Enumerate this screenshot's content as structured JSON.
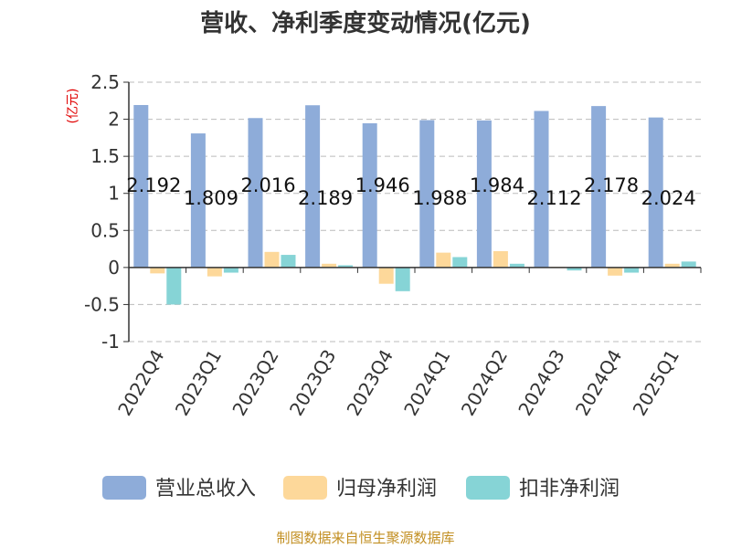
{
  "chart_data": {
    "type": "bar",
    "title": "营收、净利季度变动情况(亿元)",
    "unit_label": "(亿元)",
    "categories": [
      "2022Q4",
      "2023Q1",
      "2023Q2",
      "2023Q3",
      "2023Q4",
      "2024Q1",
      "2024Q2",
      "2024Q3",
      "2024Q4",
      "2025Q1"
    ],
    "series": [
      {
        "name": "营业总收入",
        "color": "#8eacd9",
        "values": [
          2.192,
          1.809,
          2.016,
          2.189,
          1.946,
          1.988,
          1.984,
          2.112,
          2.178,
          2.024
        ],
        "labels": [
          "2.192",
          "1.809",
          "2.016",
          "2.189",
          "1.946",
          "1.988",
          "1.984",
          "2.112",
          "2.178",
          "2.024"
        ]
      },
      {
        "name": "归母净利润",
        "color": "#fdd89a",
        "values": [
          -0.08,
          -0.12,
          0.21,
          0.05,
          -0.22,
          0.2,
          0.22,
          0.01,
          -0.11,
          0.05
        ]
      },
      {
        "name": "扣非净利润",
        "color": "#86d4d6",
        "values": [
          -0.5,
          -0.07,
          0.17,
          0.03,
          -0.32,
          0.14,
          0.05,
          -0.04,
          -0.07,
          0.08
        ]
      }
    ],
    "yticks": [
      "2.5",
      "2",
      "1.5",
      "1",
      "0.5",
      "0",
      "-0.5",
      "-1"
    ],
    "ylim": [
      -1,
      2.5
    ],
    "grid": true,
    "legend_position": "bottom"
  },
  "source": "制图数据来自恒生聚源数据库"
}
